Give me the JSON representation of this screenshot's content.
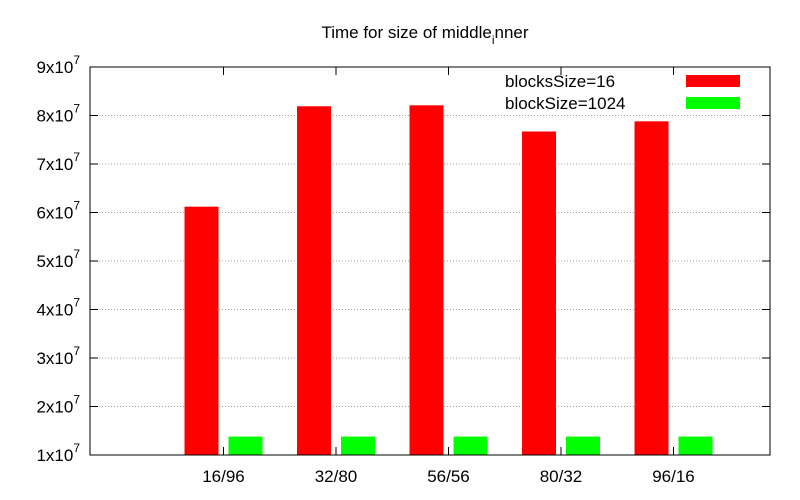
{
  "chart_data": {
    "type": "bar",
    "title": "Time for size of middle",
    "title_subscript": "i",
    "title_suffix": "nner",
    "xlabel": "",
    "ylabel": "",
    "categories": [
      "16/96",
      "32/80",
      "56/56",
      "80/32",
      "96/16"
    ],
    "ylim": [
      10000000,
      90000000
    ],
    "y_ticks": [
      {
        "value": 10000000,
        "mantissa": "1x10",
        "exp": "7"
      },
      {
        "value": 20000000,
        "mantissa": "2x10",
        "exp": "7"
      },
      {
        "value": 30000000,
        "mantissa": "3x10",
        "exp": "7"
      },
      {
        "value": 40000000,
        "mantissa": "4x10",
        "exp": "7"
      },
      {
        "value": 50000000,
        "mantissa": "5x10",
        "exp": "7"
      },
      {
        "value": 60000000,
        "mantissa": "6x10",
        "exp": "7"
      },
      {
        "value": 70000000,
        "mantissa": "7x10",
        "exp": "7"
      },
      {
        "value": 80000000,
        "mantissa": "8x10",
        "exp": "7"
      },
      {
        "value": 90000000,
        "mantissa": "9x10",
        "exp": "7"
      }
    ],
    "grid": true,
    "legend_position": "top-right",
    "series": [
      {
        "name": "blocksSize=16",
        "color": "#ff0000",
        "values": [
          61200000,
          81900000,
          82100000,
          76700000,
          78800000
        ]
      },
      {
        "name": "blockSize=1024",
        "color": "#00ff00",
        "values": [
          13800000,
          13800000,
          13800000,
          13800000,
          13800000
        ]
      }
    ]
  }
}
